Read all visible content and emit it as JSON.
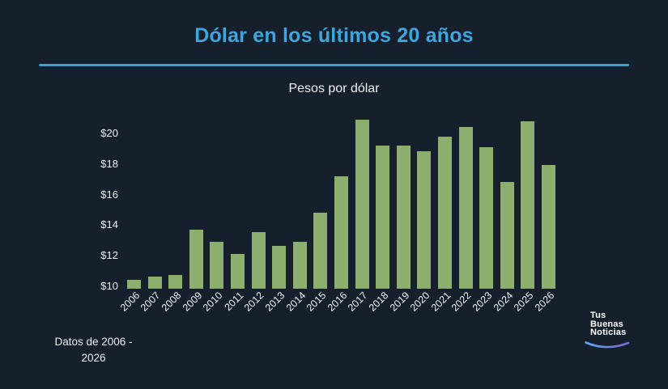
{
  "header": {
    "title": "Dólar en los últimos 20 años"
  },
  "chart_data": {
    "type": "bar",
    "title": "Pesos por dólar",
    "categories": [
      "2006",
      "2007",
      "2008",
      "2009",
      "2010",
      "2011",
      "2012",
      "2013",
      "2014",
      "2015",
      "2016",
      "2017",
      "2018",
      "2019",
      "2020",
      "2021",
      "2022",
      "2023",
      "2024",
      "2025",
      "2026"
    ],
    "values": [
      10.6,
      10.8,
      10.9,
      13.9,
      13.1,
      12.3,
      13.7,
      12.8,
      13.1,
      15.0,
      17.4,
      21.1,
      19.4,
      19.4,
      19.0,
      20.0,
      20.6,
      19.3,
      17.0,
      21.0,
      18.1
    ],
    "xlabel": "",
    "ylabel": "",
    "ytick_labels": [
      "$10",
      "$12",
      "$14",
      "$16",
      "$18",
      "$20"
    ],
    "ytick_values": [
      10,
      12,
      14,
      16,
      18,
      20
    ],
    "ylim": [
      10,
      21.6
    ],
    "grid": false,
    "legend": "none",
    "bar_color": "#8caf6e",
    "x_tick_rotation_deg": 45
  },
  "footer": {
    "note_line1": "Datos de 2006 -",
    "note_line2": "2026"
  },
  "logo": {
    "line1": "Tus",
    "line2": "Buenas",
    "line3": "Noticias"
  },
  "colors": {
    "background": "#16202d",
    "title": "#3fa6dd",
    "divider": "#3c9fd4",
    "bar": "#8caf6e",
    "text": "#eef1f3",
    "swoosh_start": "#5fa8e8",
    "swoosh_end": "#7d68d8"
  }
}
